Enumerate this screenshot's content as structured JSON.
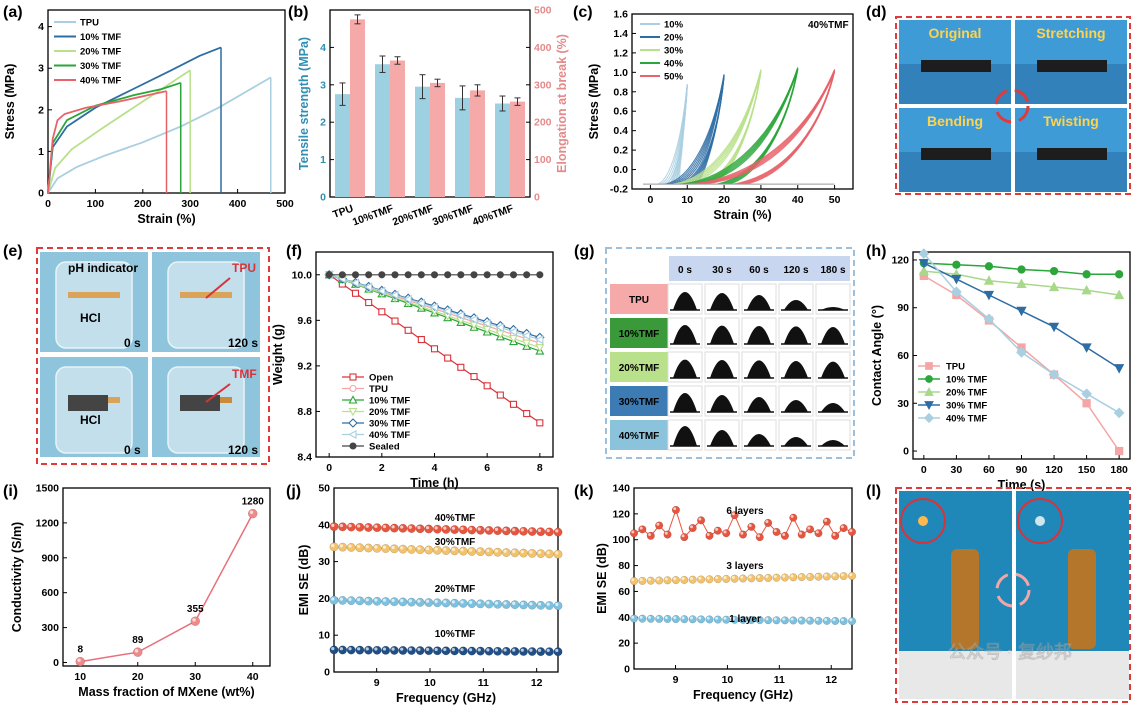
{
  "panels": {
    "a": "(a)",
    "b": "(b)",
    "c": "(c)",
    "d": "(d)",
    "e": "(e)",
    "f": "(f)",
    "g": "(g)",
    "h": "(h)",
    "i": "(i)",
    "j": "(j)",
    "k": "(k)",
    "l": "(l)"
  },
  "colors": {
    "TPU": "#f4a6a6",
    "TPU_a": "#a9cfe0",
    "10": "#2e6da4",
    "20": "#b9e08a",
    "30": "#2aa63a",
    "40": "#e8626a",
    "open": "#d9333a",
    "sealed": "#444444",
    "bar_blue": "#9dd0e0",
    "bar_pink": "#f5a9a9",
    "dash": "#e03a3a"
  },
  "chart_data": [
    {
      "id": "a",
      "type": "line",
      "xlabel": "Strain (%)",
      "ylabel": "Stress (MPa)",
      "xlim": [
        0,
        500
      ],
      "ylim": [
        0,
        4.4
      ],
      "xticks": [
        "0",
        "100",
        "200",
        "300",
        "400",
        "500"
      ],
      "yticks": [
        "0",
        "1",
        "2",
        "3",
        "4"
      ],
      "series": [
        {
          "name": "TPU",
          "x": [
            0,
            20,
            60,
            120,
            200,
            280,
            360,
            420,
            470
          ],
          "y": [
            0,
            0.35,
            0.62,
            0.9,
            1.22,
            1.6,
            2.05,
            2.45,
            2.78
          ]
        },
        {
          "name": "10% TMF",
          "x": [
            0,
            10,
            40,
            100,
            180,
            260,
            320,
            365
          ],
          "y": [
            0,
            1.1,
            1.6,
            2.05,
            2.5,
            2.95,
            3.3,
            3.5
          ]
        },
        {
          "name": "20% TMF",
          "x": [
            0,
            15,
            50,
            120,
            200,
            260,
            300
          ],
          "y": [
            0,
            0.6,
            1.05,
            1.6,
            2.2,
            2.65,
            2.95
          ]
        },
        {
          "name": "30% TMF",
          "x": [
            0,
            10,
            40,
            100,
            180,
            240,
            280
          ],
          "y": [
            0,
            1.2,
            1.75,
            2.1,
            2.35,
            2.5,
            2.65
          ]
        },
        {
          "name": "40% TMF",
          "x": [
            0,
            10,
            20,
            35,
            80,
            150,
            210,
            250
          ],
          "y": [
            0,
            1.3,
            1.75,
            1.9,
            2.05,
            2.2,
            2.35,
            2.45
          ]
        }
      ]
    },
    {
      "id": "b",
      "type": "bar",
      "categories": [
        "TPU",
        "10%TMF",
        "20%TMF",
        "30%TMF",
        "40%TMF"
      ],
      "ylabel": "Tensile strength (MPa)",
      "ylabel2": "Elongation at break (%)",
      "ylim": [
        0,
        5
      ],
      "ylim2": [
        0,
        500
      ],
      "yticks": [
        "0",
        "1",
        "2",
        "3",
        "4"
      ],
      "yticks2": [
        "0",
        "100",
        "200",
        "300",
        "400",
        "500"
      ],
      "series": [
        {
          "name": "Tensile strength",
          "values": [
            2.75,
            3.55,
            2.95,
            2.65,
            2.5
          ],
          "errors": [
            0.3,
            0.22,
            0.32,
            0.32,
            0.2
          ]
        },
        {
          "name": "Elongation at break",
          "values": [
            475,
            365,
            305,
            285,
            255
          ],
          "errors": [
            12,
            10,
            10,
            15,
            10
          ]
        }
      ]
    },
    {
      "id": "c",
      "type": "line",
      "xlabel": "Strain (%)",
      "ylabel": "Stress (MPa)",
      "annotation": "40%TMF",
      "xlim": [
        -5,
        55
      ],
      "ylim": [
        -0.2,
        1.6
      ],
      "xticks": [
        "0",
        "10",
        "20",
        "30",
        "40",
        "50"
      ],
      "yticks": [
        "-0.2",
        "0.0",
        "0.2",
        "0.4",
        "0.6",
        "0.8",
        "1.0",
        "1.2",
        "1.4",
        "1.6"
      ],
      "legend": [
        "10%",
        "20%",
        "30%",
        "40%",
        "50%"
      ],
      "peaks": [
        {
          "strain": 10,
          "stress": 0.88
        },
        {
          "strain": 20,
          "stress": 0.98
        },
        {
          "strain": 30,
          "stress": 1.03
        },
        {
          "strain": 40,
          "stress": 1.05
        },
        {
          "strain": 50,
          "stress": 1.03
        }
      ]
    },
    {
      "id": "f",
      "type": "line",
      "xlabel": "Time (h)",
      "ylabel": "Weight (g)",
      "xlim": [
        -0.5,
        8.5
      ],
      "ylim": [
        8.4,
        10.2
      ],
      "xticks": [
        "0",
        "2",
        "4",
        "6",
        "8"
      ],
      "yticks": [
        "8.4",
        "8.8",
        "9.2",
        "9.6",
        "10.0"
      ],
      "x": [
        0,
        0.5,
        1,
        1.5,
        2,
        2.5,
        3,
        3.5,
        4,
        4.5,
        5,
        5.5,
        6,
        6.5,
        7,
        7.5,
        8
      ],
      "series": [
        {
          "name": "Open",
          "start": 10.0,
          "end": 8.7
        },
        {
          "name": "TPU",
          "start": 10.0,
          "end": 9.4
        },
        {
          "name": "10% TMF",
          "start": 10.0,
          "end": 9.33
        },
        {
          "name": "20% TMF",
          "start": 10.0,
          "end": 9.36
        },
        {
          "name": "30% TMF",
          "start": 10.0,
          "end": 9.45
        },
        {
          "name": "40% TMF",
          "start": 10.0,
          "end": 9.43
        },
        {
          "name": "Sealed",
          "start": 10.0,
          "end": 10.0
        }
      ]
    },
    {
      "id": "h",
      "type": "line",
      "xlabel": "Time (s)",
      "ylabel": "Contact Angle (°)",
      "xlim": [
        -10,
        190
      ],
      "ylim": [
        -5,
        125
      ],
      "xticks": [
        "0",
        "30",
        "60",
        "90",
        "120",
        "150",
        "180"
      ],
      "yticks": [
        "0",
        "30",
        "60",
        "90",
        "120"
      ],
      "x": [
        0,
        30,
        60,
        90,
        120,
        150,
        180
      ],
      "series": [
        {
          "name": "TPU",
          "values": [
            110,
            98,
            82,
            65,
            48,
            30,
            0
          ]
        },
        {
          "name": "10% TMF",
          "values": [
            118,
            117,
            116,
            114,
            113,
            111,
            111
          ]
        },
        {
          "name": "20% TMF",
          "values": [
            113,
            111,
            107,
            105,
            103,
            101,
            98
          ]
        },
        {
          "name": "30% TMF",
          "values": [
            118,
            108,
            98,
            88,
            78,
            65,
            52
          ]
        },
        {
          "name": "40% TMF",
          "values": [
            124,
            100,
            83,
            62,
            48,
            36,
            24
          ]
        }
      ]
    },
    {
      "id": "i",
      "type": "line",
      "xlabel": "Mass fraction of MXene (wt%)",
      "ylabel": "Conductivity (S/m)",
      "xlim": [
        7,
        43
      ],
      "ylim": [
        -30,
        1500
      ],
      "xticks": [
        "10",
        "20",
        "30",
        "40"
      ],
      "yticks": [
        "0",
        "300",
        "600",
        "900",
        "1200",
        "1500"
      ],
      "x": [
        10,
        20,
        30,
        40
      ],
      "values": [
        8,
        89,
        355,
        1280
      ],
      "labels": [
        "8",
        "89",
        "355",
        "1280"
      ]
    },
    {
      "id": "j",
      "type": "line",
      "xlabel": "Frequency (GHz)",
      "ylabel": "EMI SE (dB)",
      "xlim": [
        8.2,
        12.4
      ],
      "ylim": [
        0,
        50
      ],
      "xticks": [
        "9",
        "10",
        "11",
        "12"
      ],
      "yticks": [
        "0",
        "10",
        "20",
        "30",
        "40",
        "50"
      ],
      "series": [
        {
          "name": "40%TMF",
          "start": 39.5,
          "end": 38
        },
        {
          "name": "30%TMF",
          "start": 34,
          "end": 32
        },
        {
          "name": "20%TMF",
          "start": 19.5,
          "end": 18
        },
        {
          "name": "10%TMF",
          "start": 6,
          "end": 5.5
        }
      ]
    },
    {
      "id": "k",
      "type": "line",
      "xlabel": "Frequency (GHz)",
      "ylabel": "EMI SE (dB)",
      "xlim": [
        8.2,
        12.4
      ],
      "ylim": [
        0,
        140
      ],
      "xticks": [
        "9",
        "10",
        "11",
        "12"
      ],
      "yticks": [
        "0",
        "20",
        "40",
        "60",
        "80",
        "100",
        "120",
        "140"
      ],
      "series": [
        {
          "name": "6 layers",
          "start": 105,
          "end": 105
        },
        {
          "name": "3 layers",
          "start": 68,
          "end": 72
        },
        {
          "name": "1 layer",
          "start": 39,
          "end": 37
        }
      ]
    }
  ],
  "photo_d": {
    "original": "Original",
    "stretching": "Stretching",
    "bending": "Bending",
    "twisting": "Twisting"
  },
  "photo_e": {
    "ph": "pH indicator",
    "hcl1": "HCl",
    "hcl2": "HCl",
    "tpu": "TPU",
    "tmf": "TMF",
    "t0a": "0 s",
    "t120a": "120 s",
    "t0b": "0 s",
    "t120b": "120 s"
  },
  "table_g": {
    "times": [
      "0 s",
      "30 s",
      "60 s",
      "120 s",
      "180 s"
    ],
    "rows": [
      "TPU",
      "10%TMF",
      "20%TMF",
      "30%TMF",
      "40%TMF"
    ],
    "row_colors": [
      "#f5a9a9",
      "#3a9a3a",
      "#b9e08a",
      "#3d7bb5",
      "#8cc3dc"
    ],
    "drop_heights": [
      [
        0.9,
        0.85,
        0.75,
        0.5,
        0.15
      ],
      [
        0.95,
        0.92,
        0.9,
        0.88,
        0.85
      ],
      [
        0.92,
        0.9,
        0.88,
        0.85,
        0.82
      ],
      [
        0.95,
        0.85,
        0.75,
        0.6,
        0.45
      ],
      [
        1.0,
        0.8,
        0.6,
        0.45,
        0.3
      ]
    ]
  },
  "watermark": "公众号 · 复纱邦"
}
